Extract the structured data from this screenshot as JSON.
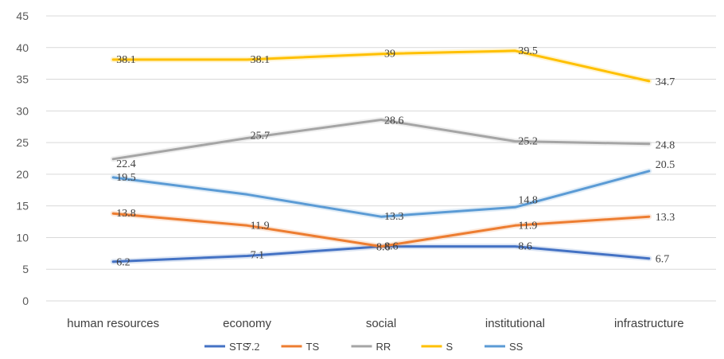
{
  "chart_data": {
    "type": "line",
    "title": "",
    "xlabel": "",
    "ylabel": "",
    "categories": [
      "human resources",
      "economy",
      "social",
      "institutional",
      "infrastructure"
    ],
    "ylim": [
      0,
      45
    ],
    "yticks": [
      0,
      5,
      10,
      15,
      20,
      25,
      30,
      35,
      40,
      45
    ],
    "grid": true,
    "legend_position": "bottom",
    "series": [
      {
        "name": "STS",
        "color": "#4472C4",
        "values": [
          6.2,
          7.1,
          8.6,
          8.6,
          6.7
        ],
        "labels": [
          "6.2",
          "7.1",
          "8.6",
          "8.6",
          "6.7"
        ]
      },
      {
        "name": "TS",
        "color": "#ED7D31",
        "values": [
          13.8,
          11.9,
          8.6,
          11.9,
          13.3
        ],
        "labels": [
          "13.8",
          "11.9",
          "8.6",
          "11.9",
          "13.3"
        ]
      },
      {
        "name": "RR",
        "color": "#A5A5A5",
        "values": [
          22.4,
          25.7,
          28.6,
          25.2,
          24.8
        ],
        "labels": [
          "22.4",
          "25.7",
          "28.6",
          "25.2",
          "24.8"
        ]
      },
      {
        "name": "S",
        "color": "#FFC000",
        "values": [
          38.1,
          38.1,
          39,
          39.5,
          34.7
        ],
        "labels": [
          "38.1",
          "38.1",
          "39",
          "39.5",
          "34.7"
        ]
      },
      {
        "name": "SS",
        "color": "#5B9BD5",
        "values": [
          19.5,
          16.8,
          13.3,
          14.8,
          20.5
        ],
        "labels": [
          "19.5",
          "",
          "13.3",
          "14.8",
          "20.5"
        ]
      }
    ],
    "stray_label": "7.2"
  }
}
